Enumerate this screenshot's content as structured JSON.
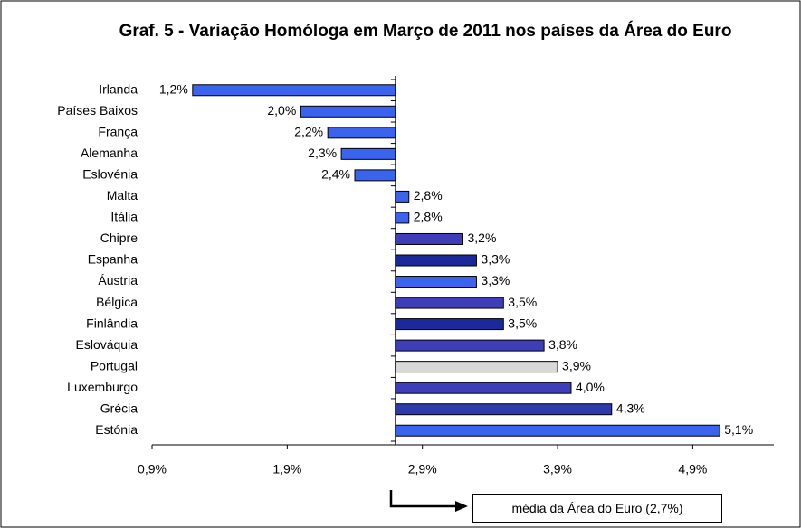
{
  "chart_data": {
    "type": "bar",
    "orientation": "horizontal",
    "title": "Graf. 5 - Variação Homóloga em Março de 2011 nos países da Área do Euro",
    "categories": [
      "Irlanda",
      "Países Baixos",
      "França",
      "Alemanha",
      "Eslovénia",
      "Malta",
      "Itália",
      "Chipre",
      "Espanha",
      "Áustria",
      "Bélgica",
      "Finlândia",
      "Eslováquia",
      "Portugal",
      "Luxemburgo",
      "Grécia",
      "Estónia"
    ],
    "values": [
      1.2,
      2.0,
      2.2,
      2.3,
      2.4,
      2.8,
      2.8,
      3.2,
      3.3,
      3.3,
      3.5,
      3.5,
      3.8,
      3.9,
      4.0,
      4.3,
      5.1
    ],
    "value_labels": [
      "1,2%",
      "2,0%",
      "2,2%",
      "2,3%",
      "2,4%",
      "2,8%",
      "2,8%",
      "3,2%",
      "3,3%",
      "3,3%",
      "3,5%",
      "3,5%",
      "3,8%",
      "3,9%",
      "4,0%",
      "4,3%",
      "5,1%"
    ],
    "colors": [
      "#3a64ee",
      "#3a64ee",
      "#3a64ee",
      "#3a64ee",
      "#3a64ee",
      "#3a64ee",
      "#3a64ee",
      "#3e3eb8",
      "#1a2a9a",
      "#3a64ee",
      "#3e3eb8",
      "#1a2a9a",
      "#3e3eb8",
      "#d8d8d8",
      "#3e3eb8",
      "#2e3aa8",
      "#3a64ee"
    ],
    "base": 2.7,
    "xlim": [
      0.9,
      5.5
    ],
    "xticks": [
      {
        "value": 0.9,
        "label": "0,9%"
      },
      {
        "value": 1.9,
        "label": "1,9%"
      },
      {
        "value": 2.9,
        "label": "2,9%"
      },
      {
        "value": 3.9,
        "label": "3,9%"
      },
      {
        "value": 4.9,
        "label": "4,9%"
      }
    ],
    "annotation": "média da Área do Euro (2,7%)"
  }
}
